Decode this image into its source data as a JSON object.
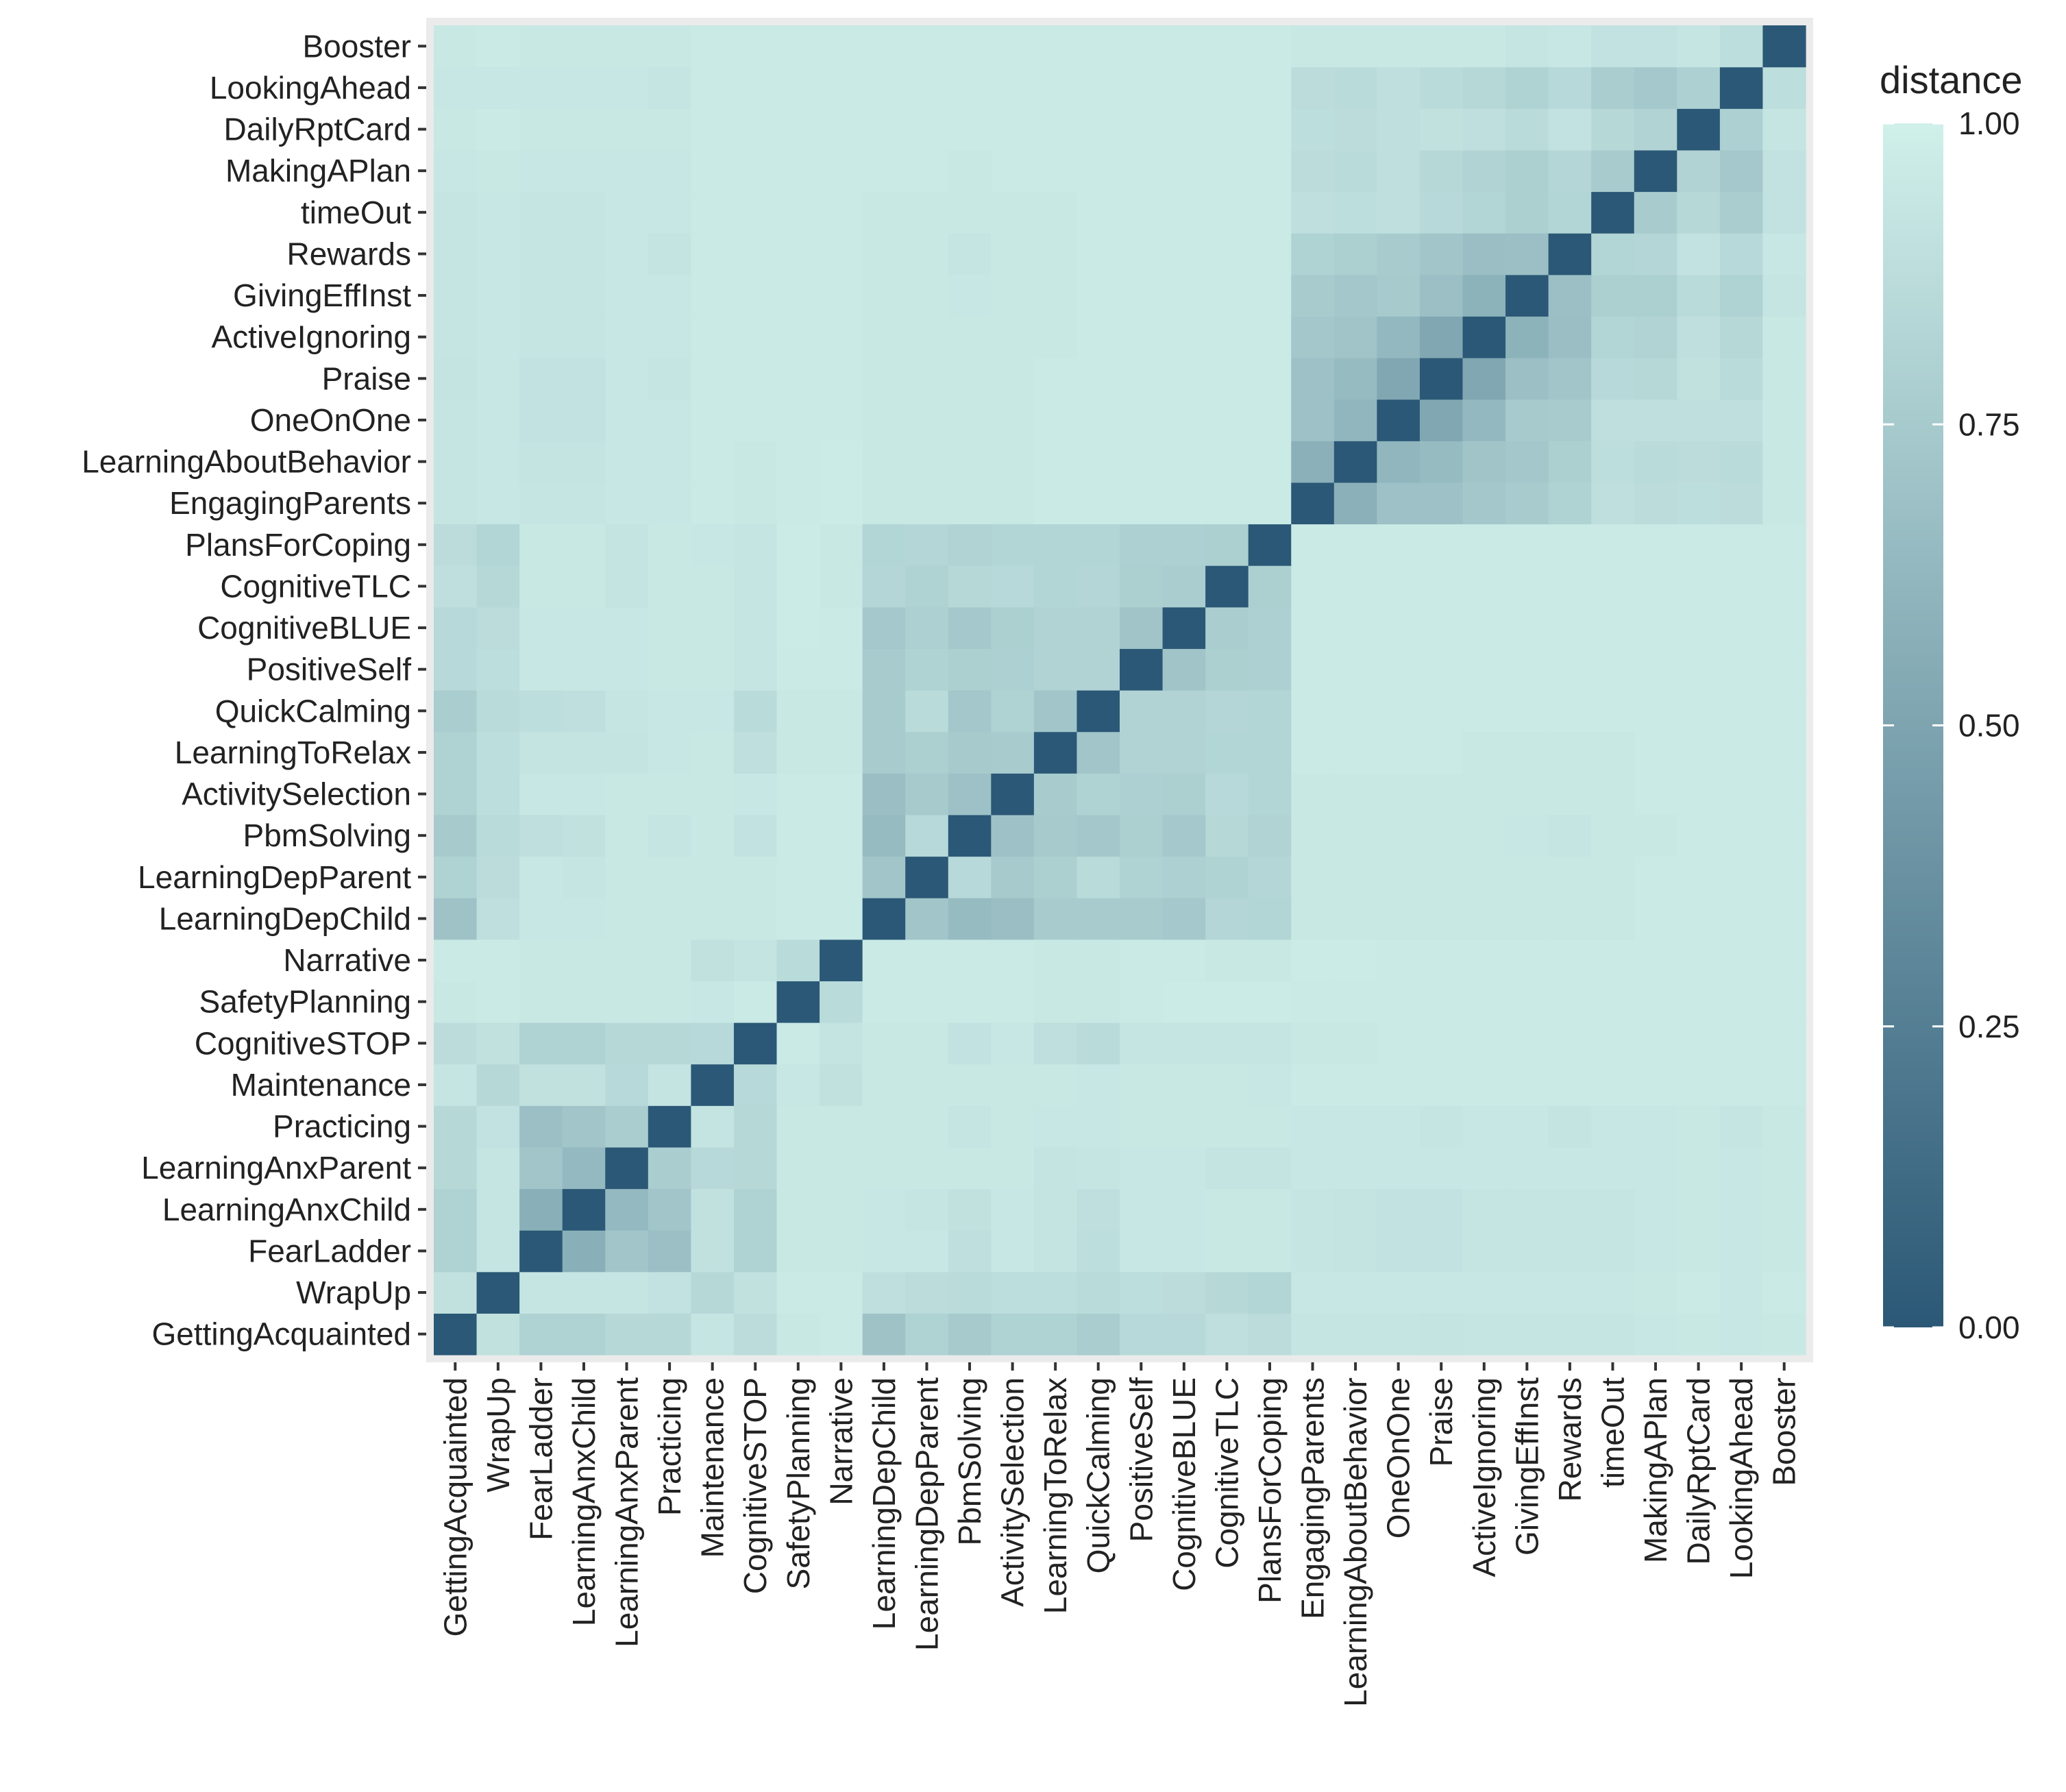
{
  "chart_data": {
    "type": "heatmap",
    "title": "",
    "xlabel": "",
    "ylabel": "",
    "categories": [
      "GettingAcquainted",
      "WrapUp",
      "FearLadder",
      "LearningAnxChild",
      "LearningAnxParent",
      "Practicing",
      "Maintenance",
      "CognitiveSTOP",
      "SafetyPlanning",
      "Narrative",
      "LearningDepChild",
      "LearningDepParent",
      "PbmSolving",
      "ActivitySelection",
      "LearningToRelax",
      "QuickCalming",
      "PositiveSelf",
      "CognitiveBLUE",
      "CognitiveTLC",
      "PlansForCoping",
      "EngagingParents",
      "LearningAboutBehavior",
      "OneOnOne",
      "Praise",
      "ActiveIgnoring",
      "GivingEffInst",
      "Rewards",
      "timeOut",
      "MakingAPlan",
      "DailyRptCard",
      "LookingAhead",
      "Booster"
    ],
    "x_order": [
      "GettingAcquainted",
      "WrapUp",
      "FearLadder",
      "LearningAnxChild",
      "LearningAnxParent",
      "Practicing",
      "Maintenance",
      "CognitiveSTOP",
      "SafetyPlanning",
      "Narrative",
      "LearningDepChild",
      "LearningDepParent",
      "PbmSolving",
      "ActivitySelection",
      "LearningToRelax",
      "QuickCalming",
      "PositiveSelf",
      "CognitiveBLUE",
      "CognitiveTLC",
      "PlansForCoping",
      "EngagingParents",
      "LearningAboutBehavior",
      "OneOnOne",
      "Praise",
      "ActiveIgnoring",
      "GivingEffInst",
      "Rewards",
      "timeOut",
      "MakingAPlan",
      "DailyRptCard",
      "LookingAhead",
      "Booster"
    ],
    "y_order_bottom_to_top": [
      "GettingAcquainted",
      "WrapUp",
      "FearLadder",
      "LearningAnxChild",
      "LearningAnxParent",
      "Practicing",
      "Maintenance",
      "CognitiveSTOP",
      "SafetyPlanning",
      "Narrative",
      "LearningDepChild",
      "LearningDepParent",
      "PbmSolving",
      "ActivitySelection",
      "LearningToRelax",
      "QuickCalming",
      "PositiveSelf",
      "CognitiveBLUE",
      "CognitiveTLC",
      "PlansForCoping",
      "EngagingParents",
      "LearningAboutBehavior",
      "OneOnOne",
      "Praise",
      "ActiveIgnoring",
      "GivingEffInst",
      "Rewards",
      "timeOut",
      "MakingAPlan",
      "DailyRptCard",
      "LookingAhead",
      "Booster"
    ],
    "matrix_note": "values[i][j] = distance between categories[i] and categories[j]; symmetric; diagonal = 0",
    "values": [
      [
        0.0,
        0.9,
        0.8,
        0.8,
        0.84,
        0.84,
        0.93,
        0.87,
        0.95,
        0.96,
        0.7,
        0.8,
        0.75,
        0.8,
        0.8,
        0.77,
        0.85,
        0.85,
        0.89,
        0.87,
        0.93,
        0.93,
        0.93,
        0.92,
        0.93,
        0.93,
        0.93,
        0.93,
        0.94,
        0.95,
        0.94,
        0.95
      ],
      [
        0.9,
        0.0,
        0.93,
        0.93,
        0.93,
        0.91,
        0.84,
        0.9,
        0.96,
        0.96,
        0.89,
        0.87,
        0.86,
        0.88,
        0.88,
        0.86,
        0.88,
        0.87,
        0.84,
        0.82,
        0.94,
        0.94,
        0.94,
        0.94,
        0.94,
        0.94,
        0.94,
        0.94,
        0.95,
        0.96,
        0.94,
        0.96
      ],
      [
        0.8,
        0.93,
        0.0,
        0.57,
        0.72,
        0.68,
        0.9,
        0.8,
        0.95,
        0.95,
        0.94,
        0.94,
        0.89,
        0.94,
        0.92,
        0.88,
        0.94,
        0.94,
        0.95,
        0.95,
        0.93,
        0.92,
        0.91,
        0.91,
        0.93,
        0.93,
        0.93,
        0.93,
        0.94,
        0.95,
        0.94,
        0.95
      ],
      [
        0.8,
        0.93,
        0.57,
        0.0,
        0.64,
        0.72,
        0.9,
        0.8,
        0.95,
        0.95,
        0.94,
        0.93,
        0.9,
        0.94,
        0.92,
        0.89,
        0.94,
        0.94,
        0.95,
        0.95,
        0.93,
        0.92,
        0.91,
        0.91,
        0.93,
        0.93,
        0.93,
        0.93,
        0.94,
        0.95,
        0.94,
        0.95
      ],
      [
        0.84,
        0.93,
        0.72,
        0.64,
        0.0,
        0.77,
        0.85,
        0.84,
        0.95,
        0.95,
        0.95,
        0.95,
        0.95,
        0.95,
        0.92,
        0.93,
        0.94,
        0.94,
        0.92,
        0.92,
        0.94,
        0.94,
        0.94,
        0.94,
        0.94,
        0.94,
        0.94,
        0.94,
        0.94,
        0.95,
        0.94,
        0.95
      ],
      [
        0.84,
        0.91,
        0.68,
        0.72,
        0.77,
        0.0,
        0.92,
        0.84,
        0.95,
        0.95,
        0.95,
        0.95,
        0.93,
        0.95,
        0.94,
        0.94,
        0.95,
        0.95,
        0.95,
        0.95,
        0.94,
        0.94,
        0.94,
        0.93,
        0.94,
        0.94,
        0.92,
        0.94,
        0.94,
        0.95,
        0.93,
        0.95
      ],
      [
        0.93,
        0.84,
        0.9,
        0.9,
        0.85,
        0.92,
        0.0,
        0.85,
        0.94,
        0.9,
        0.95,
        0.95,
        0.95,
        0.95,
        0.95,
        0.94,
        0.95,
        0.95,
        0.95,
        0.94,
        0.96,
        0.96,
        0.96,
        0.96,
        0.96,
        0.96,
        0.96,
        0.96,
        0.96,
        0.96,
        0.96,
        0.96
      ],
      [
        0.87,
        0.9,
        0.8,
        0.8,
        0.84,
        0.84,
        0.85,
        0.0,
        0.96,
        0.92,
        0.95,
        0.95,
        0.91,
        0.94,
        0.89,
        0.86,
        0.93,
        0.93,
        0.93,
        0.93,
        0.95,
        0.95,
        0.96,
        0.96,
        0.96,
        0.96,
        0.96,
        0.96,
        0.96,
        0.96,
        0.96,
        0.96
      ],
      [
        0.95,
        0.96,
        0.95,
        0.95,
        0.95,
        0.95,
        0.94,
        0.96,
        0.0,
        0.86,
        0.96,
        0.96,
        0.96,
        0.96,
        0.95,
        0.95,
        0.96,
        0.97,
        0.97,
        0.97,
        0.96,
        0.96,
        0.96,
        0.96,
        0.96,
        0.96,
        0.96,
        0.96,
        0.96,
        0.96,
        0.96,
        0.96
      ],
      [
        0.96,
        0.96,
        0.95,
        0.95,
        0.95,
        0.95,
        0.9,
        0.92,
        0.86,
        0.0,
        0.96,
        0.96,
        0.96,
        0.96,
        0.95,
        0.95,
        0.96,
        0.96,
        0.95,
        0.95,
        0.97,
        0.97,
        0.96,
        0.96,
        0.96,
        0.96,
        0.96,
        0.96,
        0.96,
        0.96,
        0.96,
        0.96
      ],
      [
        0.7,
        0.89,
        0.94,
        0.94,
        0.95,
        0.95,
        0.95,
        0.95,
        0.96,
        0.96,
        0.0,
        0.72,
        0.65,
        0.67,
        0.76,
        0.76,
        0.76,
        0.74,
        0.83,
        0.82,
        0.95,
        0.95,
        0.95,
        0.95,
        0.95,
        0.95,
        0.95,
        0.95,
        0.96,
        0.96,
        0.96,
        0.96
      ],
      [
        0.8,
        0.87,
        0.94,
        0.93,
        0.95,
        0.95,
        0.95,
        0.95,
        0.96,
        0.96,
        0.72,
        0.0,
        0.85,
        0.75,
        0.78,
        0.86,
        0.8,
        0.79,
        0.8,
        0.83,
        0.95,
        0.95,
        0.95,
        0.95,
        0.95,
        0.95,
        0.95,
        0.95,
        0.96,
        0.96,
        0.96,
        0.96
      ],
      [
        0.75,
        0.86,
        0.89,
        0.9,
        0.95,
        0.93,
        0.95,
        0.91,
        0.96,
        0.96,
        0.65,
        0.85,
        0.0,
        0.69,
        0.75,
        0.73,
        0.78,
        0.74,
        0.84,
        0.81,
        0.95,
        0.95,
        0.95,
        0.95,
        0.95,
        0.94,
        0.93,
        0.95,
        0.95,
        0.96,
        0.96,
        0.96
      ],
      [
        0.8,
        0.88,
        0.94,
        0.94,
        0.95,
        0.95,
        0.95,
        0.94,
        0.96,
        0.96,
        0.67,
        0.75,
        0.69,
        0.0,
        0.76,
        0.8,
        0.79,
        0.78,
        0.85,
        0.82,
        0.95,
        0.95,
        0.95,
        0.95,
        0.95,
        0.95,
        0.95,
        0.95,
        0.96,
        0.96,
        0.96,
        0.96
      ],
      [
        0.8,
        0.88,
        0.92,
        0.92,
        0.92,
        0.94,
        0.95,
        0.89,
        0.95,
        0.95,
        0.76,
        0.78,
        0.75,
        0.76,
        0.0,
        0.72,
        0.81,
        0.81,
        0.82,
        0.82,
        0.96,
        0.96,
        0.96,
        0.96,
        0.95,
        0.95,
        0.95,
        0.95,
        0.96,
        0.96,
        0.96,
        0.96
      ],
      [
        0.77,
        0.86,
        0.88,
        0.89,
        0.93,
        0.94,
        0.94,
        0.86,
        0.95,
        0.95,
        0.76,
        0.86,
        0.73,
        0.8,
        0.72,
        0.0,
        0.81,
        0.81,
        0.83,
        0.82,
        0.96,
        0.96,
        0.96,
        0.96,
        0.96,
        0.96,
        0.96,
        0.96,
        0.96,
        0.96,
        0.96,
        0.96
      ],
      [
        0.85,
        0.88,
        0.94,
        0.94,
        0.94,
        0.95,
        0.95,
        0.93,
        0.96,
        0.96,
        0.76,
        0.8,
        0.78,
        0.79,
        0.81,
        0.81,
        0.0,
        0.71,
        0.78,
        0.79,
        0.96,
        0.96,
        0.96,
        0.96,
        0.96,
        0.96,
        0.96,
        0.96,
        0.96,
        0.96,
        0.96,
        0.96
      ],
      [
        0.85,
        0.87,
        0.94,
        0.94,
        0.94,
        0.95,
        0.95,
        0.93,
        0.97,
        0.96,
        0.74,
        0.79,
        0.74,
        0.78,
        0.81,
        0.81,
        0.71,
        0.0,
        0.77,
        0.79,
        0.96,
        0.96,
        0.96,
        0.96,
        0.96,
        0.96,
        0.96,
        0.96,
        0.96,
        0.96,
        0.96,
        0.96
      ],
      [
        0.89,
        0.84,
        0.95,
        0.95,
        0.92,
        0.95,
        0.95,
        0.93,
        0.97,
        0.95,
        0.83,
        0.8,
        0.84,
        0.85,
        0.82,
        0.83,
        0.78,
        0.77,
        0.0,
        0.78,
        0.96,
        0.96,
        0.96,
        0.96,
        0.96,
        0.96,
        0.96,
        0.96,
        0.96,
        0.96,
        0.96,
        0.96
      ],
      [
        0.87,
        0.82,
        0.95,
        0.95,
        0.92,
        0.95,
        0.94,
        0.93,
        0.97,
        0.95,
        0.82,
        0.83,
        0.81,
        0.82,
        0.82,
        0.82,
        0.79,
        0.79,
        0.78,
        0.0,
        0.96,
        0.96,
        0.96,
        0.96,
        0.96,
        0.96,
        0.96,
        0.96,
        0.96,
        0.96,
        0.96,
        0.96
      ],
      [
        0.93,
        0.94,
        0.93,
        0.93,
        0.94,
        0.94,
        0.96,
        0.95,
        0.96,
        0.97,
        0.95,
        0.95,
        0.95,
        0.95,
        0.96,
        0.96,
        0.96,
        0.96,
        0.96,
        0.96,
        0.0,
        0.58,
        0.69,
        0.69,
        0.73,
        0.76,
        0.8,
        0.89,
        0.87,
        0.88,
        0.87,
        0.95
      ],
      [
        0.93,
        0.94,
        0.92,
        0.92,
        0.94,
        0.94,
        0.96,
        0.95,
        0.96,
        0.97,
        0.95,
        0.95,
        0.95,
        0.95,
        0.96,
        0.96,
        0.96,
        0.96,
        0.96,
        0.96,
        0.58,
        0.0,
        0.62,
        0.65,
        0.71,
        0.73,
        0.78,
        0.88,
        0.86,
        0.87,
        0.86,
        0.95
      ],
      [
        0.93,
        0.94,
        0.91,
        0.91,
        0.94,
        0.94,
        0.96,
        0.96,
        0.96,
        0.96,
        0.95,
        0.95,
        0.95,
        0.95,
        0.96,
        0.96,
        0.96,
        0.96,
        0.96,
        0.96,
        0.69,
        0.62,
        0.0,
        0.52,
        0.63,
        0.75,
        0.76,
        0.89,
        0.89,
        0.89,
        0.89,
        0.95
      ],
      [
        0.92,
        0.94,
        0.91,
        0.91,
        0.94,
        0.93,
        0.96,
        0.96,
        0.96,
        0.96,
        0.95,
        0.95,
        0.95,
        0.95,
        0.96,
        0.96,
        0.96,
        0.96,
        0.96,
        0.96,
        0.69,
        0.65,
        0.52,
        0.0,
        0.52,
        0.68,
        0.72,
        0.85,
        0.84,
        0.9,
        0.86,
        0.95
      ],
      [
        0.93,
        0.94,
        0.93,
        0.93,
        0.94,
        0.94,
        0.96,
        0.96,
        0.96,
        0.96,
        0.95,
        0.95,
        0.95,
        0.95,
        0.95,
        0.96,
        0.96,
        0.96,
        0.96,
        0.96,
        0.73,
        0.71,
        0.63,
        0.52,
        0.0,
        0.59,
        0.67,
        0.82,
        0.81,
        0.89,
        0.84,
        0.95
      ],
      [
        0.93,
        0.94,
        0.93,
        0.93,
        0.94,
        0.94,
        0.96,
        0.96,
        0.96,
        0.96,
        0.95,
        0.95,
        0.94,
        0.95,
        0.95,
        0.96,
        0.96,
        0.96,
        0.96,
        0.96,
        0.76,
        0.73,
        0.75,
        0.68,
        0.59,
        0.0,
        0.68,
        0.78,
        0.78,
        0.86,
        0.8,
        0.93
      ],
      [
        0.93,
        0.94,
        0.93,
        0.93,
        0.94,
        0.92,
        0.96,
        0.96,
        0.96,
        0.96,
        0.95,
        0.95,
        0.93,
        0.95,
        0.95,
        0.96,
        0.96,
        0.96,
        0.96,
        0.96,
        0.8,
        0.78,
        0.76,
        0.72,
        0.67,
        0.68,
        0.0,
        0.82,
        0.83,
        0.91,
        0.85,
        0.94
      ],
      [
        0.93,
        0.94,
        0.93,
        0.93,
        0.94,
        0.94,
        0.96,
        0.96,
        0.96,
        0.96,
        0.95,
        0.95,
        0.95,
        0.95,
        0.95,
        0.96,
        0.96,
        0.96,
        0.96,
        0.96,
        0.89,
        0.88,
        0.89,
        0.85,
        0.82,
        0.78,
        0.82,
        0.0,
        0.76,
        0.84,
        0.77,
        0.91
      ],
      [
        0.94,
        0.95,
        0.94,
        0.94,
        0.94,
        0.94,
        0.96,
        0.96,
        0.96,
        0.96,
        0.96,
        0.96,
        0.95,
        0.96,
        0.96,
        0.96,
        0.96,
        0.96,
        0.96,
        0.96,
        0.87,
        0.86,
        0.89,
        0.84,
        0.81,
        0.78,
        0.83,
        0.76,
        0.0,
        0.81,
        0.74,
        0.91
      ],
      [
        0.95,
        0.96,
        0.95,
        0.95,
        0.95,
        0.95,
        0.96,
        0.96,
        0.96,
        0.96,
        0.96,
        0.96,
        0.96,
        0.96,
        0.96,
        0.96,
        0.96,
        0.96,
        0.96,
        0.96,
        0.88,
        0.87,
        0.89,
        0.9,
        0.89,
        0.86,
        0.91,
        0.84,
        0.81,
        0.0,
        0.79,
        0.93
      ],
      [
        0.94,
        0.94,
        0.94,
        0.94,
        0.94,
        0.93,
        0.96,
        0.96,
        0.96,
        0.96,
        0.96,
        0.96,
        0.96,
        0.96,
        0.96,
        0.96,
        0.96,
        0.96,
        0.96,
        0.96,
        0.87,
        0.86,
        0.89,
        0.86,
        0.84,
        0.8,
        0.85,
        0.77,
        0.74,
        0.79,
        0.0,
        0.88
      ],
      [
        0.95,
        0.96,
        0.95,
        0.95,
        0.95,
        0.95,
        0.96,
        0.96,
        0.96,
        0.96,
        0.96,
        0.96,
        0.96,
        0.96,
        0.96,
        0.96,
        0.96,
        0.96,
        0.96,
        0.96,
        0.95,
        0.95,
        0.95,
        0.95,
        0.95,
        0.93,
        0.94,
        0.91,
        0.91,
        0.93,
        0.88,
        0.0
      ]
    ],
    "legend": {
      "title": "distance",
      "placement": "right",
      "range": [
        0,
        1
      ],
      "ticks": [
        0,
        0.25,
        0.5,
        0.75,
        1.0
      ],
      "tick_labels": [
        "0.00",
        "0.25",
        "0.50",
        "0.75",
        "1.00"
      ],
      "color_low": "#2b5876",
      "color_high": "#d0f0ea"
    },
    "grid": false
  }
}
